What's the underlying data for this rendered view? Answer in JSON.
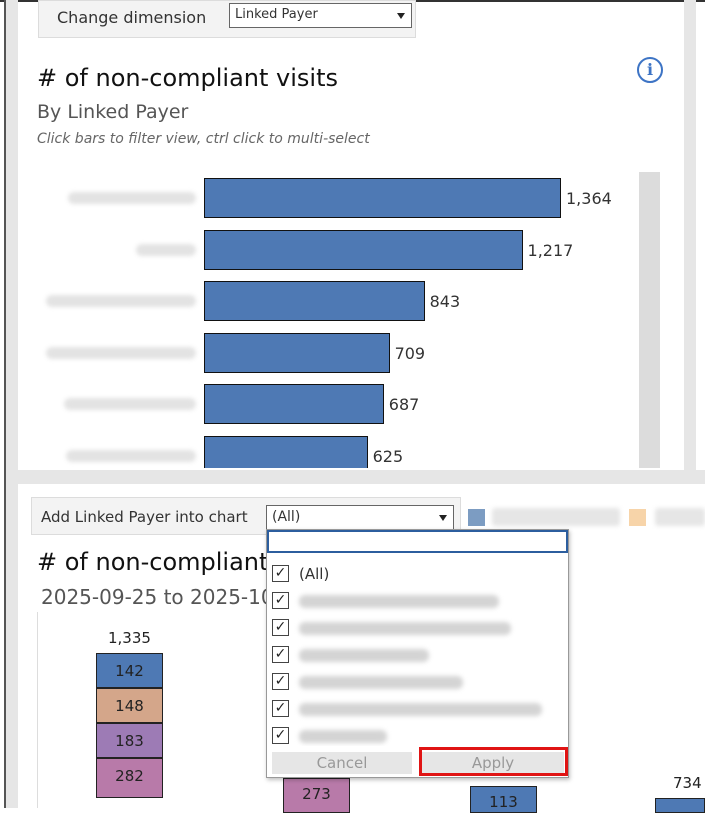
{
  "dimension": {
    "label": "Change dimension",
    "selected": "Linked Payer"
  },
  "chart1": {
    "title": "# of non-compliant visits",
    "subtitle": "By Linked Payer",
    "hint": "Click bars to filter view, ctrl click to multi-select",
    "info_icon": "info-icon",
    "chart_data": {
      "type": "bar",
      "orientation": "horizontal",
      "title": "# of non-compliant visits",
      "subtitle": "By Linked Payer",
      "categories_visible": false,
      "values": [
        1364,
        1217,
        843,
        709,
        687,
        625
      ],
      "value_labels": [
        "1,364",
        "1,217",
        "843",
        "709",
        "687",
        "625"
      ],
      "color": "#4e79b4"
    }
  },
  "controls": {
    "add_label": "Add Linked Payer into chart",
    "selected": "(All)",
    "legend_colors": [
      "#7c9cc2",
      "#f7d4a9"
    ]
  },
  "chart2": {
    "title": "# of non-compliant",
    "subtitle": "2025-09-25 to 2025-10-",
    "chart_data": {
      "type": "bar",
      "stacked": true,
      "columns": [
        {
          "total": "1,335",
          "segments": [
            {
              "value": 142,
              "color": "#4e79b4"
            },
            {
              "value": 148,
              "color": "#d4a68a"
            },
            {
              "value": 183,
              "color": "#9d7bb5"
            },
            {
              "value": 282,
              "color": "#b87aa9"
            }
          ]
        },
        {
          "total": "",
          "segments": [
            {
              "value": 273,
              "color": "#b87aa9"
            }
          ]
        },
        {
          "total": "",
          "segments": [
            {
              "value": 113,
              "color": "#4e79b4"
            }
          ]
        },
        {
          "total": "734",
          "segments": [
            {
              "value": null,
              "color": "#4e79b4"
            }
          ]
        }
      ]
    }
  },
  "dropdown": {
    "items": [
      {
        "label": "(All)",
        "checked": true
      },
      {
        "label": "",
        "checked": true
      },
      {
        "label": "",
        "checked": true
      },
      {
        "label": "",
        "checked": true
      },
      {
        "label": "",
        "checked": true
      },
      {
        "label": "",
        "checked": true
      },
      {
        "label": "",
        "checked": true
      }
    ],
    "cancel": "Cancel",
    "apply": "Apply"
  }
}
